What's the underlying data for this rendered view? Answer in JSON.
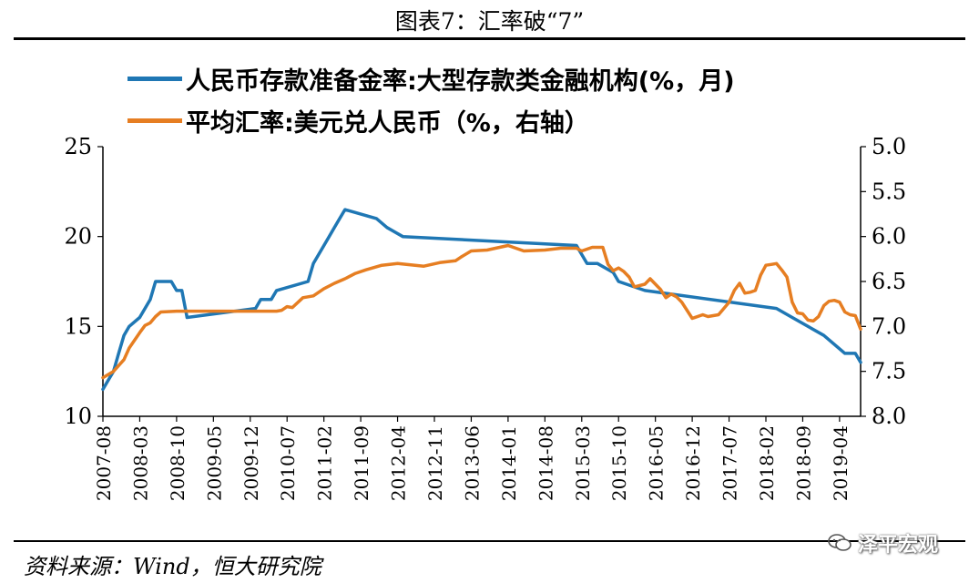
{
  "header": {
    "title": "图表7：汇率破“7”"
  },
  "footer": {
    "source": "资料来源：Wind，恒大研究院"
  },
  "watermark": {
    "text": "泽平宏观",
    "icon": "wechat-icon"
  },
  "colors": {
    "rrr": "#1f77b4",
    "fx": "#e67e22",
    "axis": "#000000"
  },
  "chart_data": {
    "type": "line",
    "title": "图表7：汇率破“7”",
    "x_tick_labels": [
      "2007-08",
      "2008-03",
      "2008-10",
      "2009-05",
      "2009-12",
      "2010-07",
      "2011-02",
      "2011-09",
      "2012-04",
      "2012-11",
      "2013-06",
      "2014-01",
      "2014-08",
      "2015-03",
      "2015-10",
      "2016-05",
      "2016-12",
      "2017-07",
      "2018-02",
      "2018-09",
      "2019-04"
    ],
    "x_start": "2007-08",
    "x_end": "2019-08",
    "left_axis": {
      "min": 10,
      "max": 25,
      "ticks": [
        "10",
        "15",
        "20",
        "25"
      ]
    },
    "right_axis": {
      "min": 5.0,
      "max": 8.0,
      "inverted": true,
      "ticks": [
        "5.0",
        "5.5",
        "6.0",
        "6.5",
        "7.0",
        "7.5",
        "8.0"
      ]
    },
    "series": [
      {
        "name": "人民币存款准备金率:大型存款类金融机构(%，月)",
        "axis": "left",
        "color": "#1f77b4",
        "points": [
          [
            "2007-08",
            11.5
          ],
          [
            "2007-09",
            12.0
          ],
          [
            "2007-10",
            12.5
          ],
          [
            "2007-11",
            13.5
          ],
          [
            "2007-12",
            14.5
          ],
          [
            "2008-01",
            15.0
          ],
          [
            "2008-03",
            15.5
          ],
          [
            "2008-04",
            16.0
          ],
          [
            "2008-05",
            16.5
          ],
          [
            "2008-06",
            17.5
          ],
          [
            "2008-09",
            17.5
          ],
          [
            "2008-10",
            17.0
          ],
          [
            "2008-11",
            17.0
          ],
          [
            "2008-12",
            15.5
          ],
          [
            "2010-01",
            16.0
          ],
          [
            "2010-02",
            16.5
          ],
          [
            "2010-04",
            16.5
          ],
          [
            "2010-05",
            17.0
          ],
          [
            "2010-11",
            17.5
          ],
          [
            "2010-12",
            18.5
          ],
          [
            "2011-01",
            19.0
          ],
          [
            "2011-02",
            19.5
          ],
          [
            "2011-03",
            20.0
          ],
          [
            "2011-04",
            20.5
          ],
          [
            "2011-05",
            21.0
          ],
          [
            "2011-06",
            21.5
          ],
          [
            "2011-12",
            21.0
          ],
          [
            "2012-02",
            20.5
          ],
          [
            "2012-05",
            20.0
          ],
          [
            "2015-02",
            19.5
          ],
          [
            "2015-04",
            18.5
          ],
          [
            "2015-06",
            18.5
          ],
          [
            "2015-09",
            18.0
          ],
          [
            "2015-10",
            17.5
          ],
          [
            "2016-03",
            17.0
          ],
          [
            "2018-04",
            16.0
          ],
          [
            "2018-07",
            15.5
          ],
          [
            "2019-01",
            14.5
          ],
          [
            "2019-05",
            13.5
          ],
          [
            "2019-07",
            13.5
          ],
          [
            "2019-08",
            13.0
          ]
        ]
      },
      {
        "name": "平均汇率:美元兑人民币（%，右轴）",
        "axis": "right",
        "color": "#e67e22",
        "points": [
          [
            "2007-08",
            7.57
          ],
          [
            "2007-10",
            7.5
          ],
          [
            "2007-12",
            7.37
          ],
          [
            "2008-01",
            7.24
          ],
          [
            "2008-03",
            7.07
          ],
          [
            "2008-04",
            6.99
          ],
          [
            "2008-05",
            6.96
          ],
          [
            "2008-06",
            6.89
          ],
          [
            "2008-07",
            6.84
          ],
          [
            "2008-10",
            6.83
          ],
          [
            "2009-06",
            6.83
          ],
          [
            "2010-05",
            6.83
          ],
          [
            "2010-06",
            6.82
          ],
          [
            "2010-07",
            6.78
          ],
          [
            "2010-08",
            6.79
          ],
          [
            "2010-10",
            6.68
          ],
          [
            "2010-12",
            6.66
          ],
          [
            "2011-02",
            6.58
          ],
          [
            "2011-04",
            6.52
          ],
          [
            "2011-06",
            6.47
          ],
          [
            "2011-08",
            6.41
          ],
          [
            "2011-10",
            6.37
          ],
          [
            "2012-01",
            6.32
          ],
          [
            "2012-04",
            6.3
          ],
          [
            "2012-09",
            6.33
          ],
          [
            "2012-12",
            6.29
          ],
          [
            "2013-03",
            6.27
          ],
          [
            "2013-04",
            6.23
          ],
          [
            "2013-06",
            6.16
          ],
          [
            "2013-09",
            6.15
          ],
          [
            "2014-01",
            6.1
          ],
          [
            "2014-04",
            6.16
          ],
          [
            "2014-08",
            6.15
          ],
          [
            "2014-11",
            6.13
          ],
          [
            "2015-02",
            6.13
          ],
          [
            "2015-03",
            6.16
          ],
          [
            "2015-05",
            6.12
          ],
          [
            "2015-07",
            6.12
          ],
          [
            "2015-08",
            6.31
          ],
          [
            "2015-09",
            6.38
          ],
          [
            "2015-10",
            6.35
          ],
          [
            "2015-11",
            6.39
          ],
          [
            "2015-12",
            6.45
          ],
          [
            "2016-01",
            6.56
          ],
          [
            "2016-03",
            6.53
          ],
          [
            "2016-04",
            6.47
          ],
          [
            "2016-05",
            6.53
          ],
          [
            "2016-06",
            6.59
          ],
          [
            "2016-07",
            6.68
          ],
          [
            "2016-08",
            6.64
          ],
          [
            "2016-09",
            6.67
          ],
          [
            "2016-10",
            6.73
          ],
          [
            "2016-12",
            6.91
          ],
          [
            "2017-02",
            6.87
          ],
          [
            "2017-03",
            6.89
          ],
          [
            "2017-05",
            6.87
          ],
          [
            "2017-06",
            6.8
          ],
          [
            "2017-07",
            6.73
          ],
          [
            "2017-08",
            6.6
          ],
          [
            "2017-09",
            6.52
          ],
          [
            "2017-10",
            6.63
          ],
          [
            "2017-11",
            6.62
          ],
          [
            "2017-12",
            6.6
          ],
          [
            "2018-01",
            6.43
          ],
          [
            "2018-02",
            6.32
          ],
          [
            "2018-03",
            6.31
          ],
          [
            "2018-04",
            6.3
          ],
          [
            "2018-05",
            6.37
          ],
          [
            "2018-06",
            6.45
          ],
          [
            "2018-07",
            6.73
          ],
          [
            "2018-08",
            6.85
          ],
          [
            "2018-09",
            6.86
          ],
          [
            "2018-10",
            6.93
          ],
          [
            "2018-11",
            6.94
          ],
          [
            "2018-12",
            6.89
          ],
          [
            "2019-01",
            6.77
          ],
          [
            "2019-02",
            6.72
          ],
          [
            "2019-03",
            6.71
          ],
          [
            "2019-04",
            6.73
          ],
          [
            "2019-05",
            6.84
          ],
          [
            "2019-06",
            6.87
          ],
          [
            "2019-07",
            6.88
          ],
          [
            "2019-08",
            7.03
          ]
        ]
      }
    ]
  }
}
